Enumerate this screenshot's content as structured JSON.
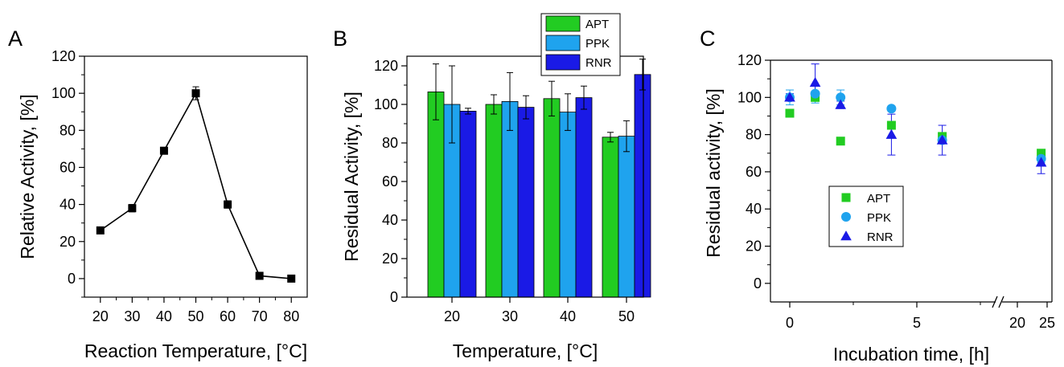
{
  "chart_data": [
    {
      "panel_label": "A",
      "type": "line",
      "xlabel": "Reaction Temperature, [°C]",
      "ylabel": "Relative Activity, [%]",
      "xlim": [
        15,
        85
      ],
      "ylim": [
        -10,
        120
      ],
      "x_ticks": [
        "20",
        "30",
        "40",
        "50",
        "60",
        "70",
        "80"
      ],
      "y_ticks": [
        "0",
        "20",
        "40",
        "60",
        "80",
        "100",
        "120"
      ],
      "marker": "square",
      "color": "#000000",
      "x": [
        20,
        30,
        40,
        50,
        60,
        70,
        80
      ],
      "y": [
        26,
        38,
        69,
        100,
        40,
        1.5,
        0
      ],
      "error": [
        1,
        2,
        1,
        3.5,
        2,
        1,
        0.5
      ]
    },
    {
      "panel_label": "B",
      "type": "bar",
      "xlabel": "Temperature, [°C]",
      "ylabel": "Residual Activity, [%]",
      "ylim": [
        0,
        125
      ],
      "categories": [
        "20",
        "30",
        "40",
        "50"
      ],
      "y_ticks": [
        "0",
        "20",
        "40",
        "60",
        "80",
        "100",
        "120"
      ],
      "legend_position": "top",
      "series": [
        {
          "name": "APT",
          "color": "#22cc22",
          "values": [
            106.5,
            100,
            103,
            83
          ],
          "error": [
            14.5,
            5,
            9,
            2.5
          ]
        },
        {
          "name": "PPK",
          "color": "#1fa3ee",
          "values": [
            100,
            101.5,
            96,
            83.5
          ],
          "error": [
            20,
            15,
            9.5,
            8
          ]
        },
        {
          "name": "RNR",
          "color": "#1a1ae6",
          "values": [
            96.5,
            98.5,
            103.5,
            115.5
          ],
          "error": [
            1.5,
            6,
            6,
            8
          ]
        }
      ]
    },
    {
      "panel_label": "C",
      "type": "scatter",
      "xlabel": "Incubation time, [h]",
      "ylabel": "Residual activity, [%]",
      "ylim": [
        -10,
        120
      ],
      "axis_break_x": true,
      "x_ticks": [
        "0",
        "5",
        "20",
        "25"
      ],
      "y_ticks": [
        "0",
        "20",
        "40",
        "60",
        "80",
        "100",
        "120"
      ],
      "legend_position": "center-left",
      "series": [
        {
          "name": "APT",
          "marker": "square",
          "color": "#22cc22",
          "x": [
            0,
            1,
            2,
            4,
            6,
            24
          ],
          "y": [
            91.5,
            100,
            76.5,
            85,
            79,
            70
          ],
          "error": [
            1,
            2,
            2,
            1,
            1,
            1
          ]
        },
        {
          "name": "PPK",
          "marker": "circle",
          "color": "#1fa3ee",
          "x": [
            0,
            1,
            2,
            4,
            6,
            24
          ],
          "y": [
            100,
            102,
            100,
            94,
            77,
            67
          ],
          "error": [
            4,
            5,
            4,
            0,
            1,
            2
          ]
        },
        {
          "name": "RNR",
          "marker": "triangle",
          "color": "#1a1ae6",
          "x": [
            0,
            1,
            2,
            4,
            6,
            24
          ],
          "y": [
            100,
            108,
            96,
            80,
            77,
            65
          ],
          "error": [
            2,
            10,
            2,
            11,
            8,
            6
          ]
        }
      ]
    }
  ]
}
